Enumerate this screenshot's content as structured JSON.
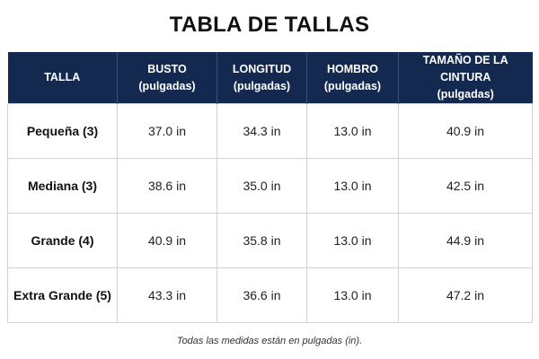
{
  "title": "TABLA DE TALLAS",
  "table": {
    "headers": [
      {
        "line1": "TALLA",
        "line2": ""
      },
      {
        "line1": "BUSTO",
        "line2": "(pulgadas)"
      },
      {
        "line1": "LONGITUD",
        "line2": "(pulgadas)"
      },
      {
        "line1": "HOMBRO",
        "line2": "(pulgadas)"
      },
      {
        "line1": "TAMAÑO DE LA CINTURA",
        "line2": "(pulgadas)"
      }
    ],
    "rows": [
      {
        "size": "Pequeña (3)",
        "bust": "37.0 in",
        "length": "34.3 in",
        "shoulder": "13.0 in",
        "waist": "40.9 in"
      },
      {
        "size": "Mediana (3)",
        "bust": "38.6 in",
        "length": "35.0 in",
        "shoulder": "13.0 in",
        "waist": "42.5 in"
      },
      {
        "size": "Grande (4)",
        "bust": "40.9 in",
        "length": "35.8 in",
        "shoulder": "13.0 in",
        "waist": "44.9 in"
      },
      {
        "size": "Extra Grande (5)",
        "bust": "43.3 in",
        "length": "36.6 in",
        "shoulder": "13.0 in",
        "waist": "47.2 in"
      }
    ]
  },
  "footnote": "Todas las medidas están en pulgadas (in).",
  "colors": {
    "header_bg": "#13294f",
    "header_text": "#ffffff",
    "border": "#cfd3d8"
  }
}
